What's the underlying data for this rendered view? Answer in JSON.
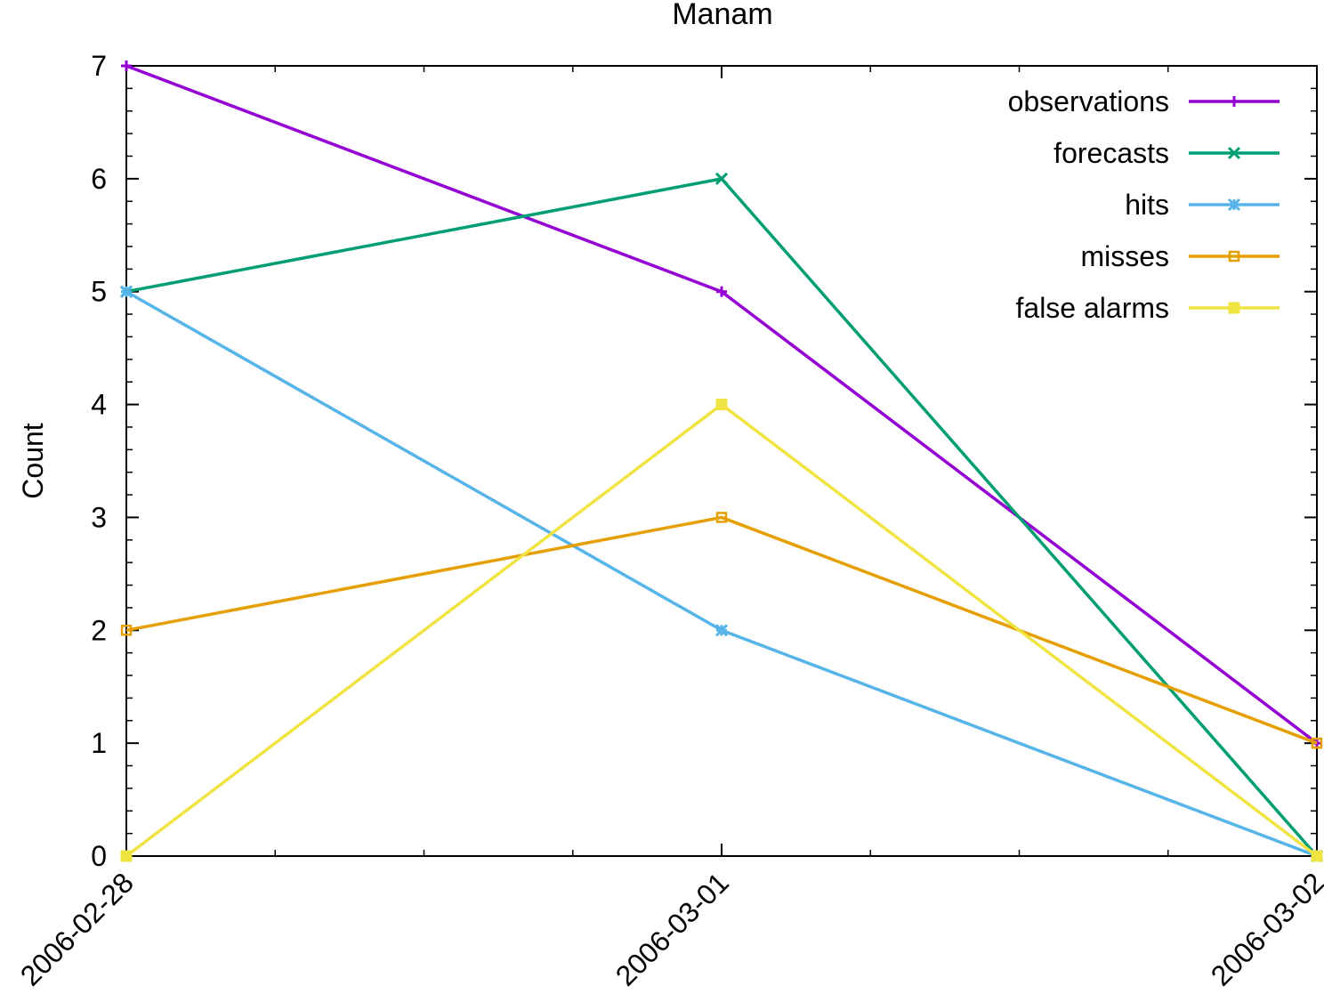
{
  "chart_data": {
    "type": "line",
    "title": "Manam",
    "xlabel": "",
    "ylabel": "Count",
    "x": [
      "2006-02-28",
      "2006-03-01",
      "2006-03-02"
    ],
    "ylim": [
      0,
      7
    ],
    "yticks": [
      "0",
      "1",
      "2",
      "3",
      "4",
      "5",
      "6",
      "7"
    ],
    "grid": false,
    "legend_position": "top-right",
    "series": [
      {
        "name": "observations",
        "values": [
          7,
          5,
          1
        ],
        "color": "#9400d3",
        "marker": "plus"
      },
      {
        "name": "forecasts",
        "values": [
          5,
          6,
          0
        ],
        "color": "#009e73",
        "marker": "cross"
      },
      {
        "name": "hits",
        "values": [
          5,
          2,
          0
        ],
        "color": "#56b4e9",
        "marker": "star"
      },
      {
        "name": "misses",
        "values": [
          2,
          3,
          1
        ],
        "color": "#e69f00",
        "marker": "square-open"
      },
      {
        "name": "false alarms",
        "values": [
          0,
          4,
          0
        ],
        "color": "#f0e442",
        "marker": "square-filled"
      }
    ]
  }
}
